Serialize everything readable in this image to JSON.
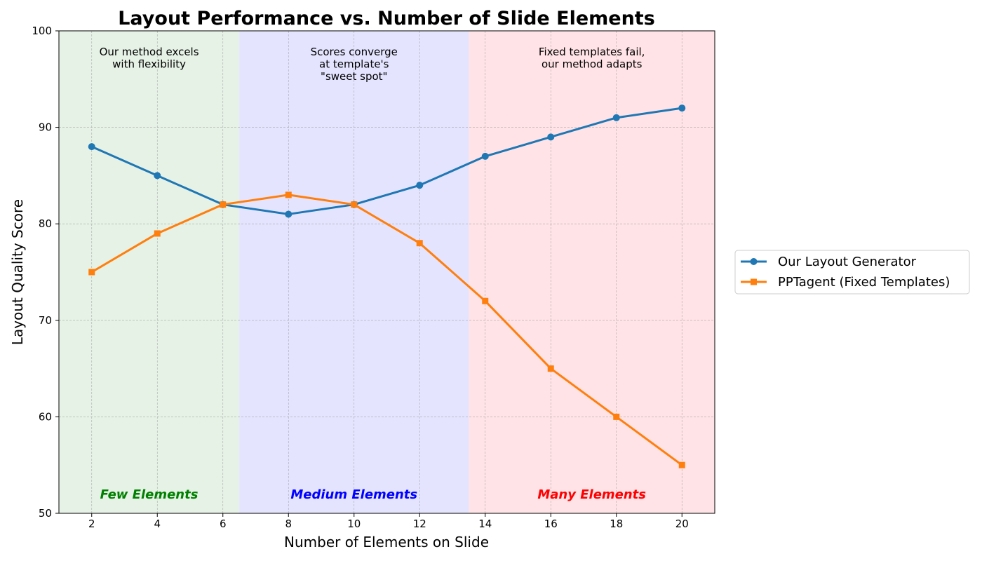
{
  "chart_data": {
    "type": "line",
    "title": "Layout Performance vs. Number of Slide Elements",
    "xlabel": "Number of Elements on Slide",
    "ylabel": "Layout Quality Score",
    "xlim": [
      1,
      21
    ],
    "ylim": [
      50,
      100
    ],
    "xticks": [
      2,
      4,
      6,
      8,
      10,
      12,
      14,
      16,
      18,
      20
    ],
    "yticks": [
      50,
      60,
      70,
      80,
      90,
      100
    ],
    "grid": true,
    "legend_position": "outside-right",
    "x": [
      2,
      4,
      6,
      8,
      10,
      12,
      14,
      16,
      18,
      20
    ],
    "series": [
      {
        "name": "Our Layout Generator",
        "color": "#1f77b4",
        "marker": "circle",
        "values": [
          88,
          85,
          82,
          81,
          82,
          84,
          87,
          89,
          91,
          92
        ]
      },
      {
        "name": "PPTagent (Fixed Templates)",
        "color": "#ff7f0e",
        "marker": "square",
        "values": [
          75,
          79,
          82,
          83,
          82,
          78,
          72,
          65,
          60,
          55
        ]
      }
    ],
    "regions": [
      {
        "label": "Few Elements",
        "x_range": [
          1,
          6.5
        ],
        "fill": "#e6f2e6",
        "label_color": "#008000",
        "annotation": [
          "Our method excels",
          "with flexibility"
        ]
      },
      {
        "label": "Medium Elements",
        "x_range": [
          6.5,
          13.5
        ],
        "fill": "#e4e4ff",
        "label_color": "#0000ff",
        "annotation": [
          "Scores converge",
          "at template's",
          "\"sweet spot\""
        ]
      },
      {
        "label": "Many Elements",
        "x_range": [
          13.5,
          21
        ],
        "fill": "#ffe3e6",
        "label_color": "#ff0000",
        "annotation": [
          "Fixed templates fail,",
          "our method adapts"
        ]
      }
    ]
  }
}
